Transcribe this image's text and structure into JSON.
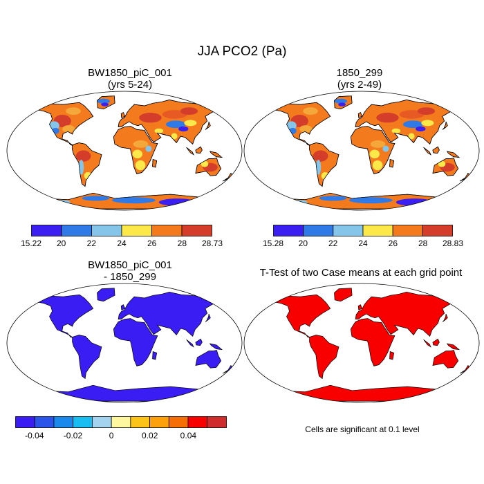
{
  "title": "JJA PCO2 (Pa)",
  "panels": [
    {
      "id": "case1",
      "title_line1": "BW1850_piC_001",
      "title_line2": "(yrs 5-24)",
      "colorbar": {
        "labels": [
          "15.22",
          "20",
          "22",
          "24",
          "26",
          "28",
          "28.73"
        ],
        "colors": [
          "#3b1ef0",
          "#2f7ae6",
          "#86c5ea",
          "#fde84a",
          "#f47a1e",
          "#d33d2a"
        ]
      },
      "land_palette": [
        "#f47a1e",
        "#e85a24",
        "#d33d2a",
        "#f5a83a",
        "#fde84a",
        "#86c5ea",
        "#2f7ae6",
        "#3b1ef0"
      ]
    },
    {
      "id": "case2",
      "title_line1": "1850_299",
      "title_line2": "(yrs 2-49)",
      "colorbar": {
        "labels": [
          "15.28",
          "20",
          "22",
          "24",
          "26",
          "28",
          "28.83"
        ],
        "colors": [
          "#3b1ef0",
          "#2f7ae6",
          "#86c5ea",
          "#fde84a",
          "#f47a1e",
          "#d33d2a"
        ]
      },
      "land_palette": [
        "#f47a1e",
        "#e85a24",
        "#d33d2a",
        "#f5a83a",
        "#fde84a",
        "#86c5ea",
        "#2f7ae6",
        "#3b1ef0"
      ]
    },
    {
      "id": "diff",
      "title_line1": "BW1850_piC_001",
      "title_line2": "- 1850_299",
      "colorbar": {
        "labels": [
          "-0.04",
          "-0.02",
          "0",
          "0.02",
          "0.04"
        ],
        "colors": [
          "#3a1df2",
          "#2b55e8",
          "#1b88ec",
          "#19bdf2",
          "#a3d3ee",
          "#fff6a0",
          "#fcc419",
          "#fca10b",
          "#f56f06",
          "#f90000",
          "#cf2d2d"
        ]
      },
      "land_color": "#3a1df2"
    },
    {
      "id": "ttest",
      "title_line1": "T-Test of two Case means at each grid point",
      "land_color": "#f90000",
      "note": "Cells are significant at 0.1 level"
    }
  ]
}
